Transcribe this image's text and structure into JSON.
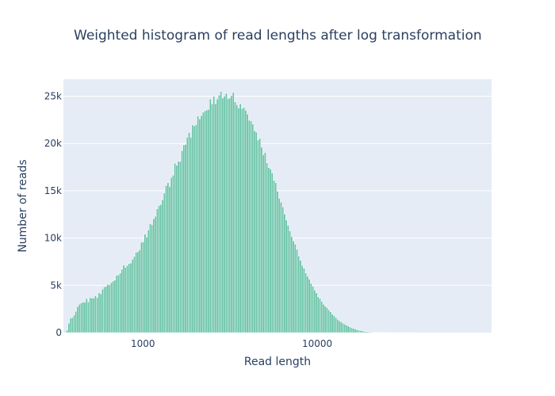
{
  "chart_data": {
    "type": "bar",
    "title": "Weighted histogram of read lengths after log transformation",
    "xlabel": "Read length",
    "ylabel": "Number of reads",
    "x_scale": "log",
    "x_range": [
      350,
      100000
    ],
    "ylim": [
      0,
      26800
    ],
    "x_tick_values": [
      1000,
      10000
    ],
    "x_tick_labels": [
      "1000",
      "10000"
    ],
    "y_tick_values": [
      0,
      5000,
      10000,
      15000,
      20000,
      25000
    ],
    "y_tick_labels": [
      "0",
      "5k",
      "10k",
      "15k",
      "20k",
      "25k"
    ],
    "bin_width_log10": 0.0102,
    "series": [
      {
        "color": "#66c2a5",
        "bin_start_x": [
          363,
          372,
          381,
          390,
          399,
          408,
          418,
          428,
          438,
          449,
          459,
          470,
          481,
          493,
          504,
          516,
          528,
          541,
          554,
          567,
          580,
          594,
          608,
          622,
          637,
          652,
          667,
          683,
          699,
          716,
          733,
          750,
          768,
          786,
          804,
          823,
          843,
          863,
          883,
          904,
          925,
          947,
          970,
          992,
          1016,
          1040,
          1064,
          1089,
          1115,
          1141,
          1168,
          1196,
          1224,
          1253,
          1283,
          1313,
          1344,
          1376,
          1408,
          1441,
          1475,
          1510,
          1546,
          1582,
          1620,
          1658,
          1697,
          1737,
          1778,
          1820,
          1863,
          1907,
          1952,
          1998,
          2045,
          2094,
          2143,
          2194,
          2245,
          2298,
          2353,
          2408,
          2465,
          2523,
          2583,
          2644,
          2706,
          2770,
          2836,
          2903,
          2971,
          3041,
          3113,
          3187,
          3262,
          3339,
          3418,
          3499,
          3581,
          3666,
          3752,
          3841,
          3932,
          4025,
          4120,
          4217,
          4317,
          4419,
          4523,
          4630,
          4739,
          4851,
          4966,
          5083,
          5203,
          5326,
          5451,
          5580,
          5712,
          5847,
          5985,
          6126,
          6271,
          6419,
          6571,
          6726,
          6885,
          7047,
          7214,
          7384,
          7558,
          7737,
          7919,
          8106,
          8298,
          8494,
          8694,
          8900,
          9110,
          9325,
          9545,
          9771,
          10001,
          10237,
          10479,
          10727,
          10980,
          11239,
          11505,
          11776,
          12054,
          12339,
          12630,
          12928,
          13234,
          13546,
          13866,
          14193,
          14528,
          14871,
          15223,
          15582,
          15950,
          16327,
          16712,
          17107,
          17511,
          17924,
          18348,
          18781,
          19224,
          19678,
          20143,
          20619,
          21105,
          21604,
          22114,
          22636,
          23170,
          23718,
          24278,
          24851,
          25438,
          26038,
          26653,
          27283,
          27927,
          28586,
          29261,
          29952,
          30660,
          31384,
          32125,
          32883,
          33660,
          34455,
          35268,
          36101,
          36954,
          37826,
          38720,
          39634,
          40570,
          41528,
          42508,
          43512,
          44540,
          45591,
          46668,
          47770,
          48898,
          50053,
          51235,
          52444,
          53683,
          54951,
          56248,
          57576,
          58936,
          60328,
          61752,
          63210,
          64703,
          66231,
          67795,
          69396,
          71034,
          72712,
          74429,
          76186
        ],
        "values": [
          250,
          1000,
          1550,
          1600,
          1850,
          2250,
          2750,
          3000,
          3150,
          3250,
          3200,
          3600,
          3250,
          3700,
          3650,
          3650,
          3900,
          3700,
          4200,
          4100,
          4600,
          4850,
          4900,
          5100,
          5050,
          5300,
          5450,
          5550,
          6050,
          6100,
          6300,
          6700,
          7150,
          6900,
          7100,
          7300,
          7350,
          7750,
          8050,
          8500,
          8550,
          8750,
          9550,
          9600,
          10400,
          10100,
          10850,
          11500,
          11400,
          12050,
          12300,
          13100,
          13450,
          13550,
          14050,
          14750,
          15550,
          15850,
          15450,
          16400,
          16650,
          17900,
          17700,
          18100,
          18100,
          19250,
          19850,
          19900,
          20650,
          21150,
          20650,
          21950,
          21850,
          22000,
          22900,
          22600,
          22950,
          23300,
          23450,
          23550,
          23600,
          24700,
          24200,
          25000,
          24200,
          24700,
          25100,
          25500,
          24800,
          25000,
          25300,
          24750,
          24800,
          25050,
          25400,
          24400,
          24100,
          23750,
          24200,
          23700,
          23800,
          23500,
          23100,
          22450,
          22400,
          22050,
          21350,
          21200,
          20350,
          20550,
          19600,
          18800,
          19050,
          17950,
          17450,
          17300,
          16900,
          16100,
          15850,
          14950,
          14200,
          13800,
          13300,
          12550,
          11900,
          11350,
          10750,
          10150,
          9700,
          9350,
          8800,
          8100,
          7650,
          7100,
          6800,
          6300,
          5950,
          5650,
          5200,
          4900,
          4500,
          4200,
          3800,
          3600,
          3300,
          3000,
          2800,
          2650,
          2400,
          2200,
          1950,
          1800,
          1600,
          1400,
          1250,
          1150,
          1000,
          900,
          800,
          700,
          600,
          500,
          450,
          380,
          320,
          260,
          220,
          180,
          150,
          120,
          100,
          80,
          65,
          55,
          45,
          38,
          32,
          27,
          22,
          18,
          15,
          12,
          10,
          8,
          7,
          6,
          5,
          4,
          3,
          3,
          2,
          2,
          2,
          1,
          1,
          1,
          1,
          1,
          1,
          1,
          0,
          0,
          0,
          0,
          0,
          0,
          0,
          0,
          0,
          0,
          0,
          0,
          0,
          0,
          0,
          0,
          0,
          0,
          0,
          0,
          0,
          0,
          0,
          0,
          0,
          0,
          0,
          0,
          0,
          0,
          0,
          0,
          0,
          0,
          0,
          0,
          0,
          0,
          0,
          0,
          0,
          0,
          0,
          0,
          0,
          0,
          0,
          0,
          0,
          0
        ]
      }
    ],
    "background_color": "#e5ecf6",
    "grid": true,
    "legend": "none"
  }
}
